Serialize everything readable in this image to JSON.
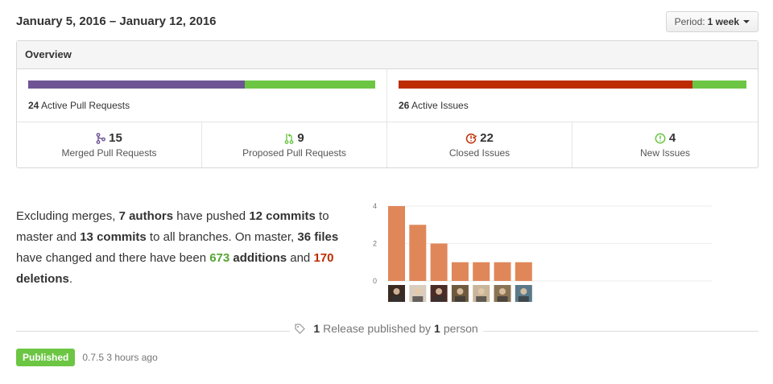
{
  "header": {
    "date_range": "January 5, 2016 – January 12, 2016",
    "period_label": "Period:",
    "period_value": "1 week"
  },
  "overview": {
    "title": "Overview",
    "pull_requests": {
      "count": "24",
      "label": "Active Pull Requests",
      "merged_fraction": 0.625,
      "colors": {
        "merged": "#6e5494",
        "proposed": "#6cc644"
      }
    },
    "issues": {
      "count": "26",
      "label": "Active Issues",
      "closed_fraction": 0.846,
      "colors": {
        "closed": "#bd2c00",
        "new": "#6cc644"
      }
    },
    "stats": [
      {
        "value": "15",
        "label": "Merged Pull Requests",
        "icon": "git-merge-icon",
        "color": "#6e5494"
      },
      {
        "value": "9",
        "label": "Proposed Pull Requests",
        "icon": "git-pull-request-icon",
        "color": "#6cc644"
      },
      {
        "value": "22",
        "label": "Closed Issues",
        "icon": "issue-closed-icon",
        "color": "#bd2c00"
      },
      {
        "value": "4",
        "label": "New Issues",
        "icon": "issue-opened-icon",
        "color": "#6cc644"
      }
    ]
  },
  "summary": {
    "p1": "Excluding merges, ",
    "authors": "7 authors",
    "p2": " have pushed ",
    "commits_master": "12 commits",
    "p3": " to master and ",
    "commits_all": "13 commits",
    "p4": " to all branches. On master, ",
    "files": "36 files",
    "p5": " have changed and there have been ",
    "additions_num": "673",
    "additions_word": "additions",
    "p6": " and ",
    "deletions_num": "170",
    "deletions_word": "deletions",
    "p7": "."
  },
  "chart_data": {
    "type": "bar",
    "categories": [
      "author-1",
      "author-2",
      "author-3",
      "author-4",
      "author-5",
      "author-6",
      "author-7"
    ],
    "values": [
      4,
      3,
      2,
      1,
      1,
      1,
      1
    ],
    "yticks": [
      "4",
      "2",
      "0"
    ],
    "ylim": [
      0,
      4
    ],
    "bar_color": "#e0875a",
    "grid": true
  },
  "release": {
    "count": "1",
    "text_mid": "Release published by",
    "person_count": "1",
    "person_word": "person",
    "badge": "Published",
    "meta": "0.7.5 3 hours ago"
  }
}
